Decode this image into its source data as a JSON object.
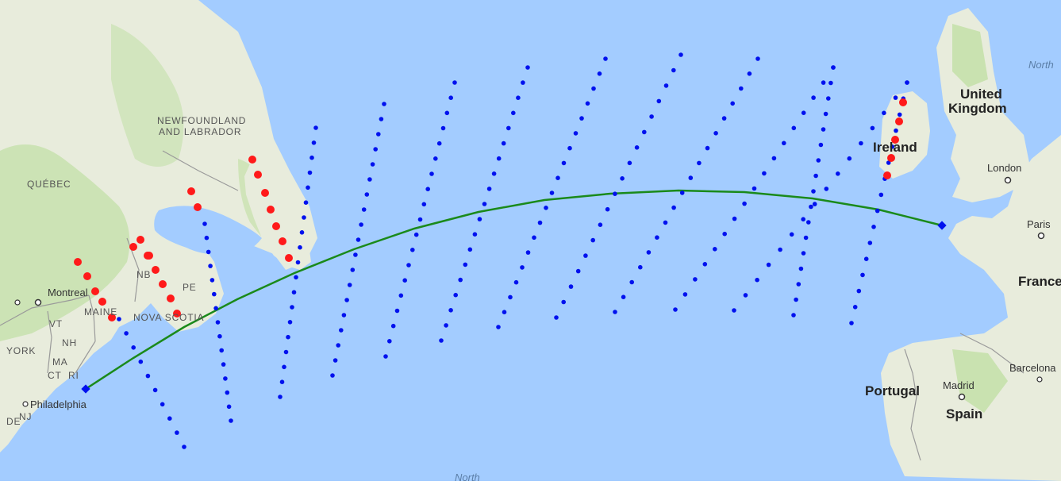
{
  "map": {
    "ocean_color": "#a3ccff",
    "land_color": "#e8ecdc",
    "forest_color": "#c9e2b0",
    "border_color": "#9a9a9a",
    "route_color": "#1a8a1a",
    "grid_dot_color": "#0011ee",
    "marker_color": "#ff1a1a"
  },
  "labels": {
    "newfoundland_line1": "NEWFOUNDLAND",
    "newfoundland_line2": "AND LABRADOR",
    "quebec": "QUÉBEC",
    "nb": "NB",
    "pe": "PE",
    "nova_scotia": "NOVA SCOTIA",
    "montreal": "Montreal",
    "maine": "MAINE",
    "vt": "VT",
    "nh": "NH",
    "new_york": "YORK",
    "ma": "MA",
    "ct": "CT",
    "ri": "RI",
    "philadelphia": "Philadelphia",
    "nj": "NJ",
    "de": "DE",
    "united_kingdom_line1": "United",
    "united_kingdom_line2": "Kingdom",
    "ireland": "Ireland",
    "london": "London",
    "paris": "Paris",
    "france": "France",
    "barcelona": "Barcelona",
    "madrid": "Madrid",
    "portugal": "Portugal",
    "spain": "Spain",
    "north_top": "North",
    "north_bottom": "North"
  }
}
